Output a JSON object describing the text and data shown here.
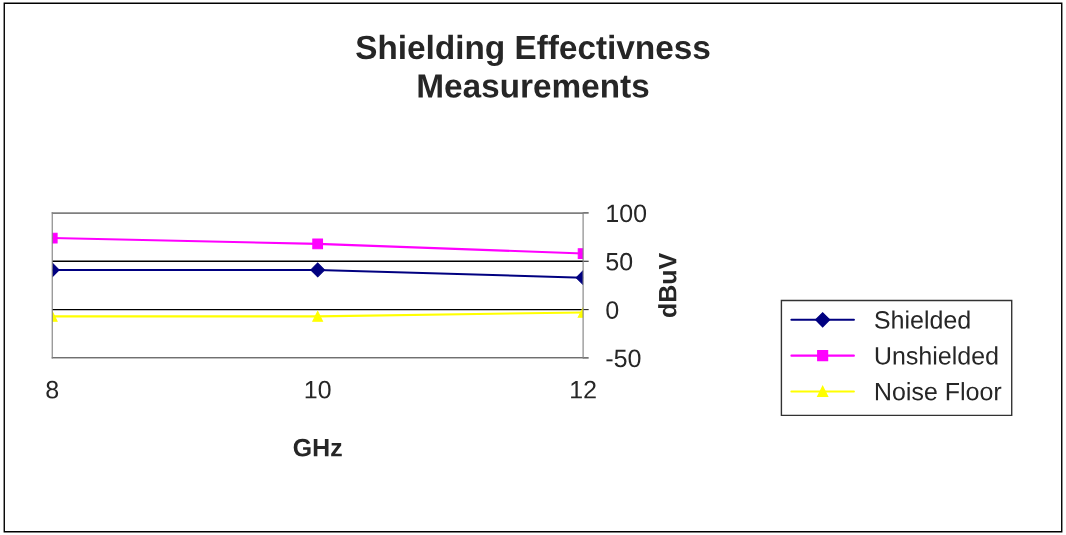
{
  "chart_data": {
    "type": "line",
    "title": "Shielding Effectivness\nMeasurements",
    "xlabel": "GHz",
    "ylabel": "dBuV",
    "x": [
      8,
      10,
      12
    ],
    "xlim": [
      8,
      12
    ],
    "xticks": [
      8,
      10,
      12
    ],
    "ylim": [
      -50,
      100
    ],
    "yticks": [
      -50,
      0,
      50,
      100
    ],
    "grid": "y",
    "legend": "right",
    "series": [
      {
        "name": "Shielded",
        "color": "#000080",
        "marker": "diamond",
        "values": [
          41,
          41,
          33
        ]
      },
      {
        "name": "Unshielded",
        "color": "#ff00ff",
        "marker": "square",
        "values": [
          74,
          68,
          58
        ]
      },
      {
        "name": "Noise Floor",
        "color": "#ffff00",
        "marker": "triangle",
        "values": [
          -7,
          -7,
          -3
        ]
      }
    ]
  }
}
